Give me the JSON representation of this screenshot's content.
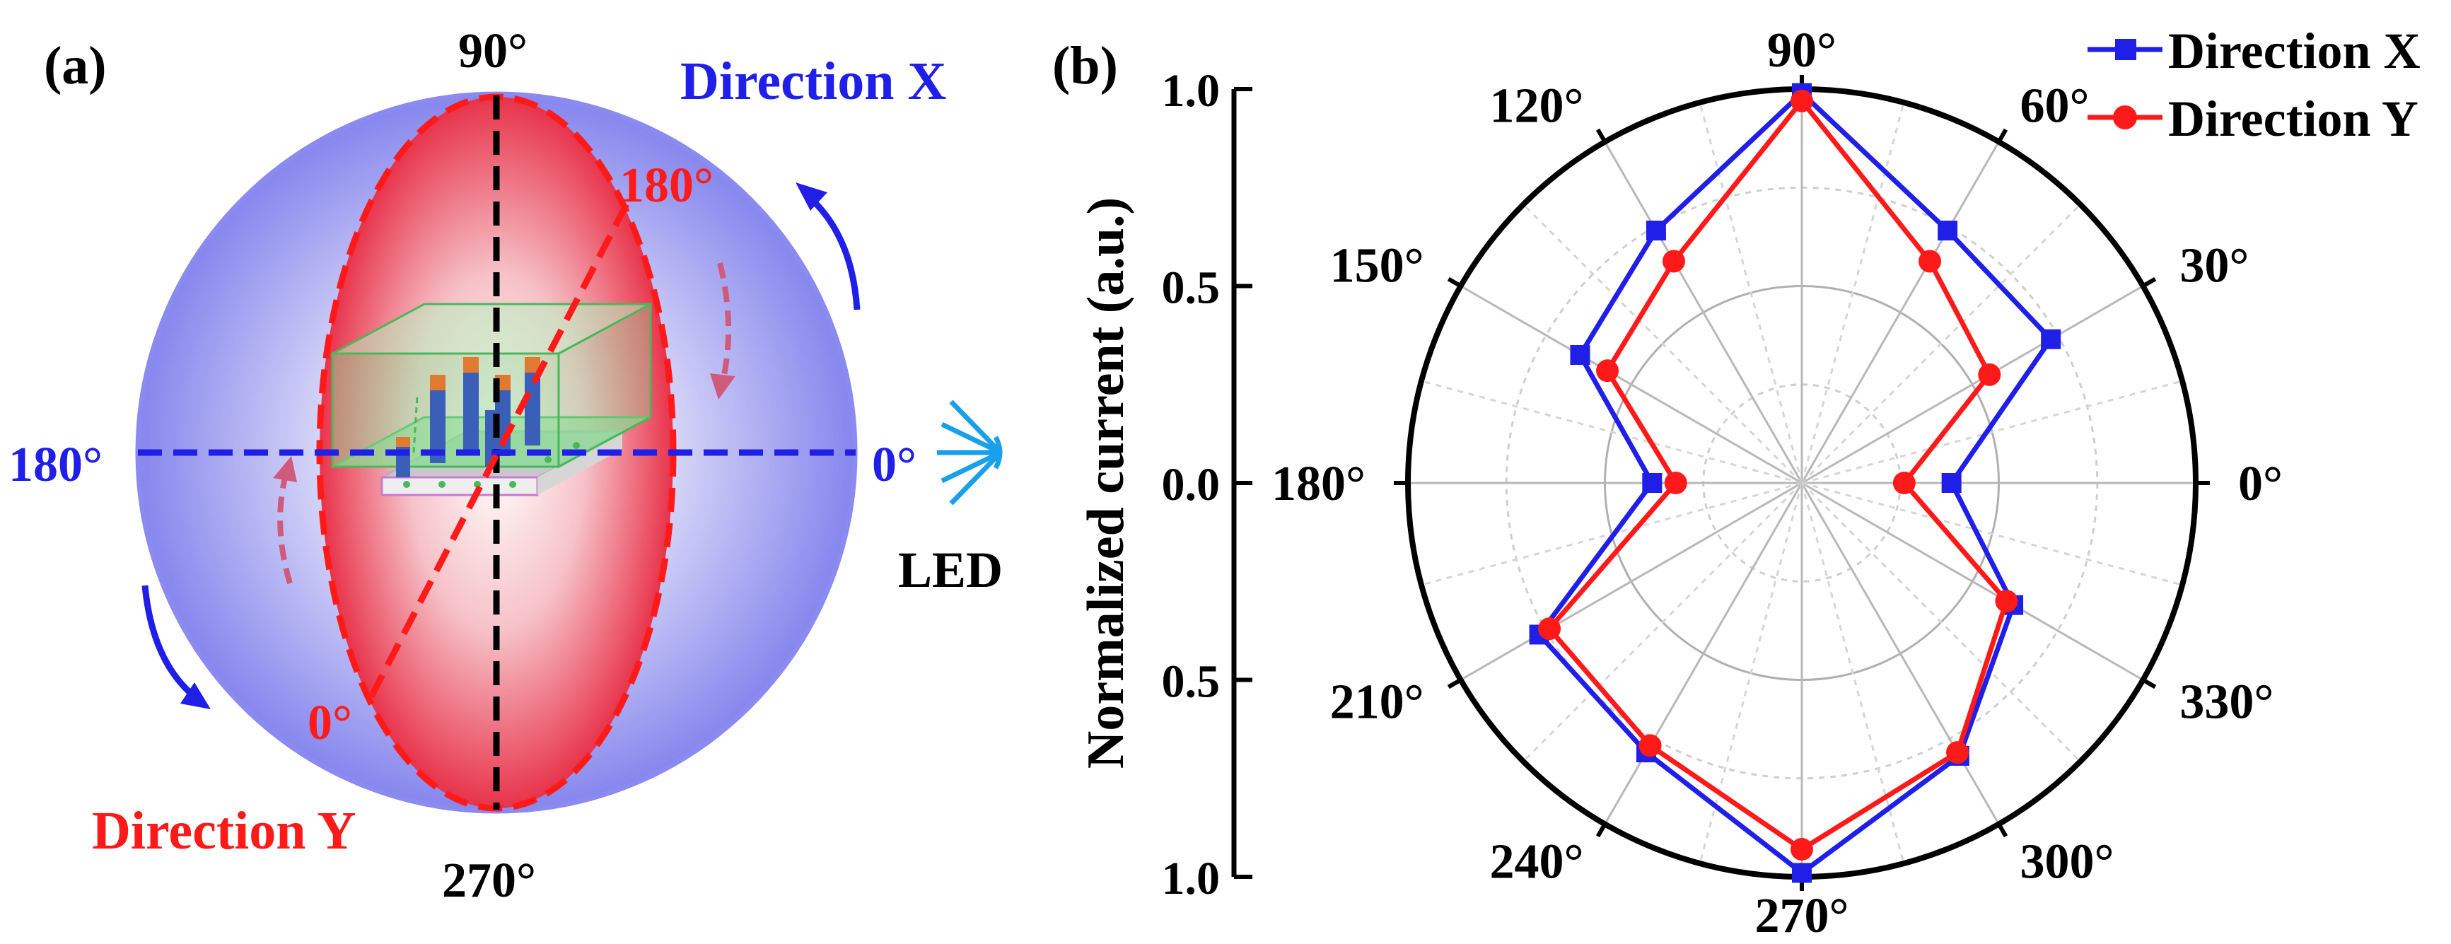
{
  "panel_a": {
    "label": "(a)",
    "direction_x": {
      "label": "Direction X",
      "color": "#1f1fe8"
    },
    "direction_y": {
      "label": "Direction Y",
      "color": "#ff1a1a"
    },
    "angles": {
      "top": "90°",
      "bottom": "270°",
      "x_left": "180°",
      "x_right": "0°",
      "y_start": "0°",
      "y_end": "180°"
    },
    "led_label": "LED"
  },
  "chart_data": {
    "type": "polar-line",
    "panel_label": "(b)",
    "ylabel": "Normalized current (a.u.)",
    "radial_axis": {
      "range": [
        0,
        1.0
      ],
      "tick_labels": [
        "1.0",
        "0.5",
        "0.0",
        "0.5",
        "1.0"
      ]
    },
    "angles_deg": [
      0,
      30,
      60,
      90,
      120,
      150,
      180,
      210,
      240,
      270,
      300,
      330
    ],
    "angle_labels": [
      "0°",
      "30°",
      "60°",
      "90°",
      "120°",
      "150°",
      "180°",
      "210°",
      "240°",
      "270°",
      "300°",
      "330°"
    ],
    "series": [
      {
        "name": "Direction X",
        "color": "#1f1fe8",
        "marker": "square",
        "values": [
          0.38,
          0.73,
          0.74,
          0.99,
          0.74,
          0.65,
          0.38,
          0.77,
          0.79,
          0.99,
          0.8,
          0.62
        ]
      },
      {
        "name": "Direction Y",
        "color": "#ff1a1a",
        "marker": "circle",
        "values": [
          0.26,
          0.55,
          0.65,
          0.97,
          0.65,
          0.57,
          0.32,
          0.74,
          0.77,
          0.93,
          0.79,
          0.6
        ]
      }
    ],
    "grid": true,
    "legend_position": "top-right"
  }
}
